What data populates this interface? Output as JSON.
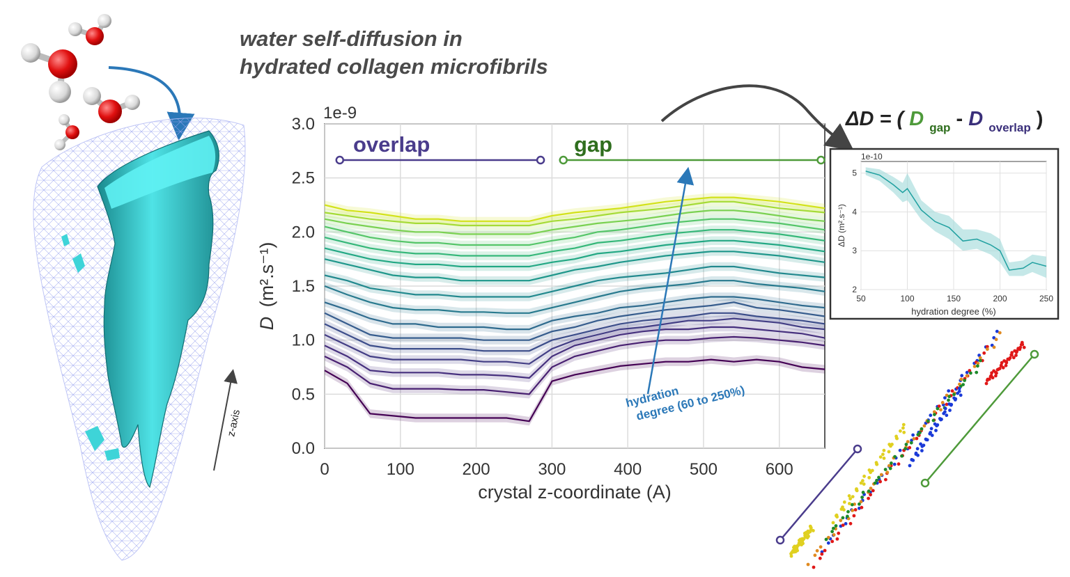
{
  "title_line1": "water self-diffusion in",
  "title_line2": "hydrated collagen microfibrils",
  "main_chart": {
    "offset_label": "1e-9",
    "xlabel": "crystal z-coordinate (A)",
    "ylabel_symbol": "D",
    "ylabel_units": "(m².s⁻¹)",
    "xticks": [
      0,
      100,
      200,
      300,
      400,
      500,
      600
    ],
    "yticks": [
      "0.0",
      "0.5",
      "1.0",
      "1.5",
      "2.0",
      "2.5",
      "3.0"
    ],
    "overlap_label": "overlap",
    "gap_label": "gap",
    "hydration_annotation_line1": "hydration",
    "hydration_annotation_line2": "degree (60 to 250%)"
  },
  "delta_formula": {
    "prefix": "ΔD = (",
    "d_gap": "D",
    "sub_gap": "gap",
    "minus": " - ",
    "d_overlap": "D",
    "sub_overlap": "overlap",
    "suffix": ")"
  },
  "inset_chart": {
    "offset_label": "1e-10",
    "xlabel": "hydration degree (%)",
    "ylabel": "ΔD (m².s⁻¹)",
    "xticks": [
      50,
      100,
      150,
      200,
      250
    ],
    "yticks": [
      2,
      3,
      4,
      5
    ]
  },
  "z_axis_label": "z-axis",
  "colors": {
    "overlap": "#4a3c8c",
    "gap": "#4e9a3a",
    "arrow_blue": "#2b78b8",
    "teal": "#3ee0e0",
    "inset_line": "#20a0a0"
  },
  "chart_data": [
    {
      "type": "line",
      "xlim": [
        0,
        660
      ],
      "ylim": [
        0,
        3e-09
      ],
      "x": [
        0,
        30,
        60,
        90,
        120,
        150,
        180,
        210,
        240,
        270,
        300,
        330,
        360,
        390,
        420,
        450,
        480,
        510,
        540,
        570,
        600,
        630,
        660
      ],
      "series": [
        {
          "values": [
            0.72,
            0.6,
            0.32,
            0.3,
            0.28,
            0.28,
            0.28,
            0.28,
            0.28,
            0.25,
            0.62,
            0.68,
            0.72,
            0.76,
            0.78,
            0.8,
            0.8,
            0.82,
            0.8,
            0.82,
            0.8,
            0.75,
            0.73
          ]
        },
        {
          "values": [
            0.85,
            0.75,
            0.6,
            0.55,
            0.55,
            0.55,
            0.54,
            0.54,
            0.52,
            0.5,
            0.75,
            0.85,
            0.9,
            0.95,
            0.98,
            1.0,
            1.0,
            1.02,
            1.03,
            1.02,
            1.0,
            0.98,
            0.95
          ]
        },
        {
          "values": [
            0.95,
            0.85,
            0.72,
            0.7,
            0.7,
            0.7,
            0.68,
            0.68,
            0.67,
            0.65,
            0.85,
            0.95,
            1.0,
            1.05,
            1.08,
            1.1,
            1.1,
            1.12,
            1.12,
            1.1,
            1.08,
            1.06,
            1.02
          ]
        },
        {
          "values": [
            1.05,
            0.95,
            0.85,
            0.82,
            0.82,
            0.82,
            0.82,
            0.8,
            0.8,
            0.78,
            0.92,
            1.0,
            1.05,
            1.1,
            1.12,
            1.15,
            1.18,
            1.18,
            1.2,
            1.18,
            1.16,
            1.12,
            1.1
          ]
        },
        {
          "values": [
            1.15,
            1.05,
            0.95,
            0.92,
            0.92,
            0.92,
            0.92,
            0.9,
            0.9,
            0.9,
            1.0,
            1.05,
            1.1,
            1.15,
            1.18,
            1.2,
            1.22,
            1.25,
            1.25,
            1.22,
            1.2,
            1.18,
            1.15
          ]
        },
        {
          "values": [
            1.25,
            1.15,
            1.05,
            1.02,
            1.02,
            1.02,
            1.02,
            1.0,
            1.0,
            1.0,
            1.08,
            1.12,
            1.18,
            1.22,
            1.25,
            1.28,
            1.3,
            1.32,
            1.35,
            1.3,
            1.28,
            1.25,
            1.22
          ]
        },
        {
          "values": [
            1.35,
            1.28,
            1.2,
            1.15,
            1.15,
            1.12,
            1.12,
            1.12,
            1.1,
            1.1,
            1.18,
            1.22,
            1.25,
            1.3,
            1.32,
            1.35,
            1.38,
            1.4,
            1.4,
            1.38,
            1.35,
            1.32,
            1.3
          ]
        },
        {
          "values": [
            1.5,
            1.42,
            1.35,
            1.3,
            1.28,
            1.28,
            1.26,
            1.26,
            1.25,
            1.25,
            1.3,
            1.35,
            1.4,
            1.45,
            1.48,
            1.5,
            1.52,
            1.55,
            1.55,
            1.52,
            1.5,
            1.48,
            1.45
          ]
        },
        {
          "values": [
            1.6,
            1.55,
            1.48,
            1.45,
            1.42,
            1.42,
            1.4,
            1.4,
            1.4,
            1.4,
            1.45,
            1.5,
            1.55,
            1.58,
            1.6,
            1.62,
            1.65,
            1.68,
            1.68,
            1.65,
            1.62,
            1.6,
            1.58
          ]
        },
        {
          "values": [
            1.75,
            1.7,
            1.65,
            1.6,
            1.58,
            1.58,
            1.55,
            1.55,
            1.55,
            1.55,
            1.6,
            1.65,
            1.68,
            1.72,
            1.75,
            1.78,
            1.8,
            1.82,
            1.82,
            1.8,
            1.78,
            1.75,
            1.72
          ]
        },
        {
          "values": [
            1.85,
            1.8,
            1.75,
            1.72,
            1.7,
            1.7,
            1.68,
            1.68,
            1.68,
            1.68,
            1.72,
            1.75,
            1.8,
            1.82,
            1.85,
            1.88,
            1.9,
            1.92,
            1.92,
            1.9,
            1.88,
            1.85,
            1.82
          ]
        },
        {
          "values": [
            1.95,
            1.9,
            1.85,
            1.82,
            1.8,
            1.8,
            1.78,
            1.78,
            1.78,
            1.78,
            1.82,
            1.85,
            1.9,
            1.92,
            1.95,
            1.98,
            2.0,
            2.02,
            2.02,
            2.0,
            1.98,
            1.95,
            1.92
          ]
        },
        {
          "values": [
            2.05,
            2.0,
            1.95,
            1.92,
            1.9,
            1.9,
            1.88,
            1.88,
            1.88,
            1.88,
            1.92,
            1.95,
            2.0,
            2.02,
            2.05,
            2.08,
            2.1,
            2.12,
            2.12,
            2.1,
            2.08,
            2.05,
            2.02
          ]
        },
        {
          "values": [
            2.12,
            2.08,
            2.05,
            2.02,
            2.0,
            2.0,
            1.98,
            1.98,
            1.98,
            1.98,
            2.02,
            2.05,
            2.08,
            2.1,
            2.12,
            2.15,
            2.18,
            2.2,
            2.2,
            2.18,
            2.15,
            2.12,
            2.1
          ]
        },
        {
          "values": [
            2.18,
            2.15,
            2.12,
            2.1,
            2.08,
            2.08,
            2.06,
            2.06,
            2.06,
            2.06,
            2.1,
            2.12,
            2.15,
            2.18,
            2.2,
            2.22,
            2.25,
            2.28,
            2.28,
            2.25,
            2.22,
            2.2,
            2.18
          ]
        },
        {
          "values": [
            2.25,
            2.2,
            2.18,
            2.15,
            2.12,
            2.12,
            2.1,
            2.1,
            2.1,
            2.1,
            2.15,
            2.18,
            2.2,
            2.22,
            2.25,
            2.28,
            2.3,
            2.32,
            2.32,
            2.3,
            2.28,
            2.25,
            2.22
          ]
        }
      ],
      "colors": [
        "#440154",
        "#482071",
        "#46307e",
        "#433e85",
        "#3c4d8a",
        "#365c8d",
        "#2f6b8e",
        "#287a8e",
        "#22898e",
        "#1f978b",
        "#23a884",
        "#35b779",
        "#54c568",
        "#7ad151",
        "#a5db36",
        "#d2e21b"
      ],
      "overlap_range": [
        20,
        285
      ],
      "gap_range": [
        315,
        655
      ]
    },
    {
      "type": "area",
      "xlim": [
        50,
        250
      ],
      "ylim": [
        2,
        5.3
      ],
      "x": [
        55,
        70,
        85,
        95,
        100,
        115,
        130,
        145,
        160,
        175,
        190,
        200,
        210,
        225,
        235,
        250
      ],
      "values": [
        5.05,
        4.95,
        4.7,
        4.5,
        4.6,
        4.05,
        3.75,
        3.6,
        3.25,
        3.3,
        3.15,
        3.0,
        2.5,
        2.55,
        2.7,
        2.6
      ],
      "lower": [
        4.95,
        4.8,
        4.5,
        4.25,
        4.3,
        3.8,
        3.5,
        3.3,
        3.0,
        3.05,
        2.9,
        2.7,
        2.35,
        2.35,
        2.45,
        2.3
      ],
      "upper": [
        5.15,
        5.1,
        4.9,
        4.75,
        5.0,
        4.3,
        4.0,
        3.9,
        3.55,
        3.55,
        3.45,
        3.3,
        2.7,
        2.75,
        2.9,
        2.85
      ]
    }
  ]
}
